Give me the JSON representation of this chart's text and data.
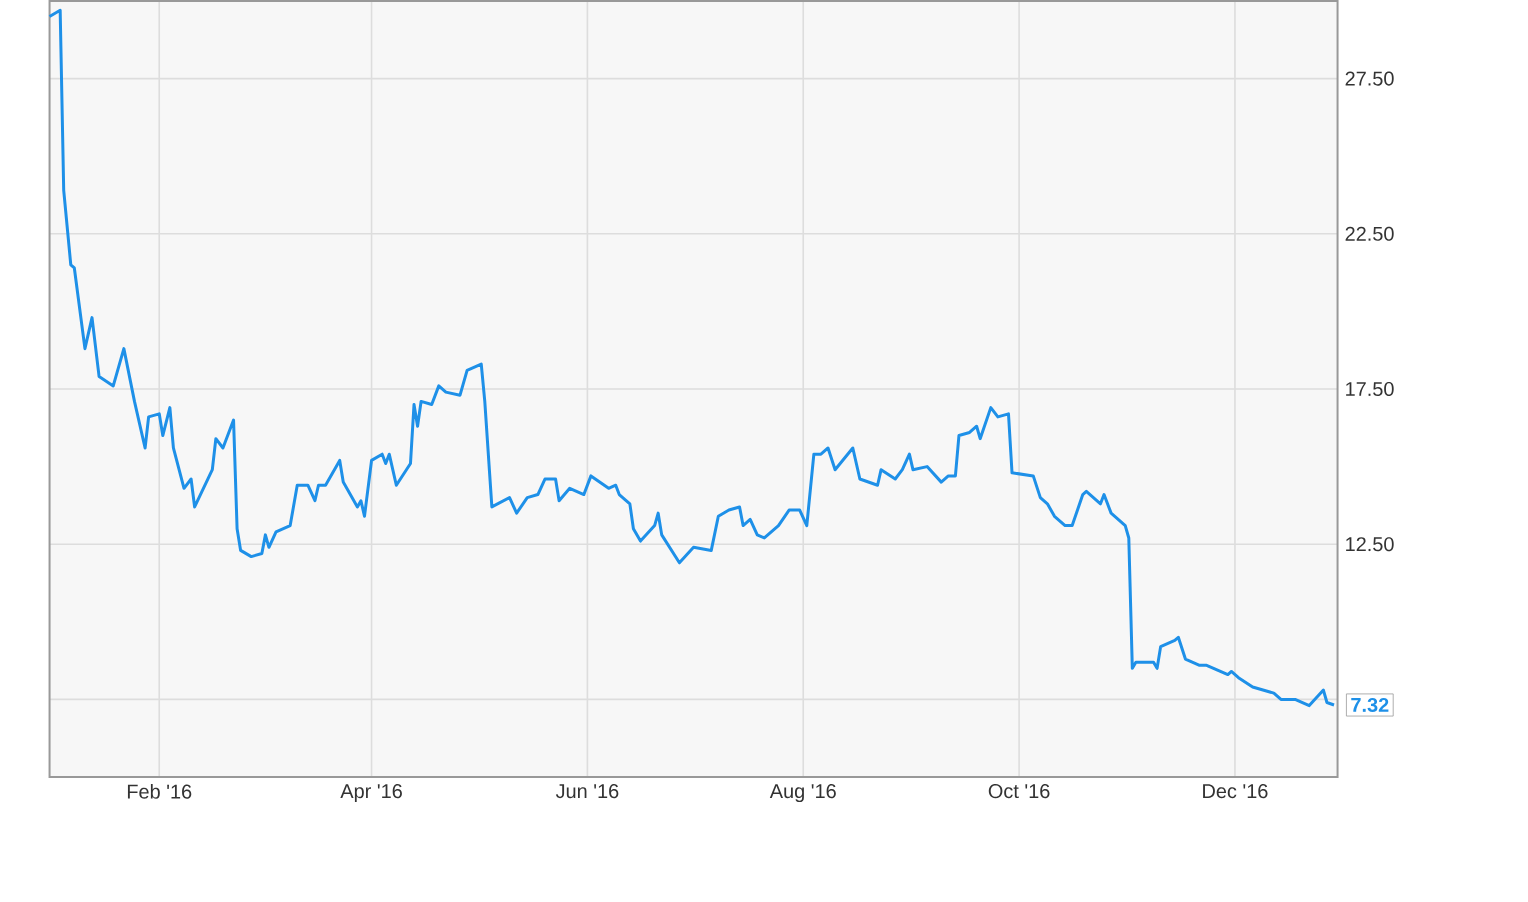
{
  "chart_data": {
    "type": "line",
    "x": [
      "2016-01-01",
      "2016-01-04",
      "2016-01-05",
      "2016-01-07",
      "2016-01-08",
      "2016-01-11",
      "2016-01-13",
      "2016-01-15",
      "2016-01-19",
      "2016-01-22",
      "2016-01-25",
      "2016-01-28",
      "2016-01-29",
      "2016-02-01",
      "2016-02-02",
      "2016-02-04",
      "2016-02-05",
      "2016-02-08",
      "2016-02-10",
      "2016-02-11",
      "2016-02-16",
      "2016-02-17",
      "2016-02-19",
      "2016-02-22",
      "2016-02-23",
      "2016-02-24",
      "2016-02-27",
      "2016-03-01",
      "2016-03-02",
      "2016-03-03",
      "2016-03-05",
      "2016-03-09",
      "2016-03-11",
      "2016-03-14",
      "2016-03-16",
      "2016-03-17",
      "2016-03-19",
      "2016-03-23",
      "2016-03-24",
      "2016-03-28",
      "2016-03-29",
      "2016-03-30",
      "2016-04-01",
      "2016-04-04",
      "2016-04-05",
      "2016-04-06",
      "2016-04-08",
      "2016-04-12",
      "2016-04-13",
      "2016-04-14",
      "2016-04-15",
      "2016-04-18",
      "2016-04-20",
      "2016-04-22",
      "2016-04-26",
      "2016-04-28",
      "2016-05-02",
      "2016-05-03",
      "2016-05-05",
      "2016-05-10",
      "2016-05-12",
      "2016-05-15",
      "2016-05-18",
      "2016-05-20",
      "2016-05-23",
      "2016-05-24",
      "2016-05-27",
      "2016-05-31",
      "2016-06-02",
      "2016-06-07",
      "2016-06-09",
      "2016-06-10",
      "2016-06-13",
      "2016-06-14",
      "2016-06-16",
      "2016-06-20",
      "2016-06-21",
      "2016-06-22",
      "2016-06-27",
      "2016-07-01",
      "2016-07-06",
      "2016-07-08",
      "2016-07-11",
      "2016-07-14",
      "2016-07-15",
      "2016-07-17",
      "2016-07-19",
      "2016-07-21",
      "2016-07-25",
      "2016-07-28",
      "2016-07-31",
      "2016-08-02",
      "2016-08-04",
      "2016-08-06",
      "2016-08-08",
      "2016-08-10",
      "2016-08-15",
      "2016-08-17",
      "2016-08-22",
      "2016-08-23",
      "2016-08-27",
      "2016-08-29",
      "2016-08-31",
      "2016-09-01",
      "2016-09-05",
      "2016-09-09",
      "2016-09-11",
      "2016-09-13",
      "2016-09-14",
      "2016-09-17",
      "2016-09-19",
      "2016-09-20",
      "2016-09-23",
      "2016-09-25",
      "2016-09-28",
      "2016-09-29",
      "2016-10-05",
      "2016-10-07",
      "2016-10-09",
      "2016-10-11",
      "2016-10-14",
      "2016-10-16",
      "2016-10-19",
      "2016-10-20",
      "2016-10-24",
      "2016-10-25",
      "2016-10-27",
      "2016-10-31",
      "2016-11-01",
      "2016-11-02",
      "2016-11-03",
      "2016-11-08",
      "2016-11-09",
      "2016-11-10",
      "2016-11-14",
      "2016-11-15",
      "2016-11-17",
      "2016-11-21",
      "2016-11-23",
      "2016-11-29",
      "2016-11-30",
      "2016-12-02",
      "2016-12-06",
      "2016-12-12",
      "2016-12-14",
      "2016-12-18",
      "2016-12-22",
      "2016-12-26",
      "2016-12-27",
      "2016-12-29"
    ],
    "series": [
      {
        "color": "#1e90e8",
        "values": [
          29.5,
          29.7,
          23.9,
          21.5,
          21.4,
          18.8,
          19.8,
          17.9,
          17.6,
          18.8,
          17.1,
          15.6,
          16.6,
          16.7,
          16.0,
          16.9,
          15.6,
          14.3,
          14.6,
          13.7,
          14.9,
          15.9,
          15.6,
          16.5,
          13.0,
          12.3,
          12.1,
          12.2,
          12.8,
          12.4,
          12.9,
          13.1,
          14.4,
          14.4,
          13.9,
          14.4,
          14.4,
          15.2,
          14.5,
          13.7,
          13.9,
          13.4,
          15.2,
          15.4,
          15.1,
          15.4,
          14.4,
          15.1,
          17.0,
          16.3,
          17.1,
          17.0,
          17.6,
          17.4,
          17.3,
          18.1,
          18.3,
          17.1,
          13.7,
          14.0,
          13.5,
          14.0,
          14.1,
          14.6,
          14.6,
          13.9,
          14.3,
          14.1,
          14.7,
          14.3,
          14.4,
          14.1,
          13.8,
          13.0,
          12.6,
          13.1,
          13.5,
          12.8,
          11.9,
          12.4,
          12.3,
          13.4,
          13.6,
          13.7,
          13.1,
          13.3,
          12.8,
          12.7,
          13.1,
          13.6,
          13.6,
          13.1,
          15.4,
          15.4,
          15.6,
          14.9,
          15.6,
          14.6,
          14.4,
          14.9,
          14.6,
          14.9,
          15.4,
          14.9,
          15.0,
          14.5,
          14.7,
          14.7,
          16.0,
          16.1,
          16.3,
          15.9,
          16.9,
          16.6,
          16.7,
          14.8,
          14.7,
          14.0,
          13.8,
          13.4,
          13.1,
          13.1,
          14.1,
          14.2,
          13.8,
          14.1,
          13.5,
          13.1,
          12.7,
          8.5,
          8.7,
          8.7,
          8.5,
          9.2,
          9.4,
          9.5,
          8.8,
          8.6,
          8.6,
          8.3,
          8.4,
          8.2,
          7.9,
          7.7,
          7.5,
          7.5,
          7.3,
          7.8,
          7.4,
          7.32
        ]
      }
    ],
    "xlim": [
      "2016-01-01",
      "2016-12-30"
    ],
    "xticks": [
      {
        "value": "2016-02-01",
        "label": "Feb '16"
      },
      {
        "value": "2016-04-01",
        "label": "Apr '16"
      },
      {
        "value": "2016-06-01",
        "label": "Jun '16"
      },
      {
        "value": "2016-08-01",
        "label": "Aug '16"
      },
      {
        "value": "2016-10-01",
        "label": "Oct '16"
      },
      {
        "value": "2016-12-01",
        "label": "Dec '16"
      }
    ],
    "ylim": [
      5,
      30
    ],
    "yticks": [
      {
        "value": 7.5,
        "label": null
      },
      {
        "value": 12.5,
        "label": "12.50"
      },
      {
        "value": 17.5,
        "label": "17.50"
      },
      {
        "value": 22.5,
        "label": "22.50"
      },
      {
        "value": 27.5,
        "label": "27.50"
      }
    ],
    "grid": true,
    "annotations": [
      {
        "text": "7.32",
        "x": "2016-12-29",
        "y": 7.32
      }
    ]
  }
}
